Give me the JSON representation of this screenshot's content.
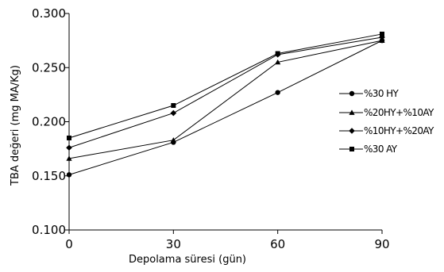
{
  "chart_data": {
    "type": "line",
    "title": "",
    "xlabel": "Depolama süresi (gün)",
    "ylabel": "TBA değeri (mg MA/Kg)",
    "x": [
      0,
      30,
      60,
      90
    ],
    "xticks": [
      "0",
      "30",
      "60",
      "90"
    ],
    "yticks": [
      "0.100",
      "0.150",
      "0.200",
      "0.250",
      "0.300"
    ],
    "xlim": [
      0,
      90
    ],
    "ylim": [
      0.1,
      0.3
    ],
    "grid": false,
    "legend_position": "right",
    "series": [
      {
        "name": "%30 HY",
        "marker": "circle",
        "values": [
          0.151,
          0.181,
          0.227,
          0.275
        ]
      },
      {
        "name": "%20HY+%10AY",
        "marker": "triangle",
        "values": [
          0.166,
          0.183,
          0.255,
          0.275
        ]
      },
      {
        "name": "%10HY+%20AY",
        "marker": "diamond",
        "values": [
          0.176,
          0.208,
          0.262,
          0.278
        ]
      },
      {
        "name": "%30 AY",
        "marker": "square",
        "values": [
          0.185,
          0.215,
          0.263,
          0.281
        ]
      }
    ],
    "colors": {
      "line": "#000000",
      "axis": "#000000"
    }
  }
}
